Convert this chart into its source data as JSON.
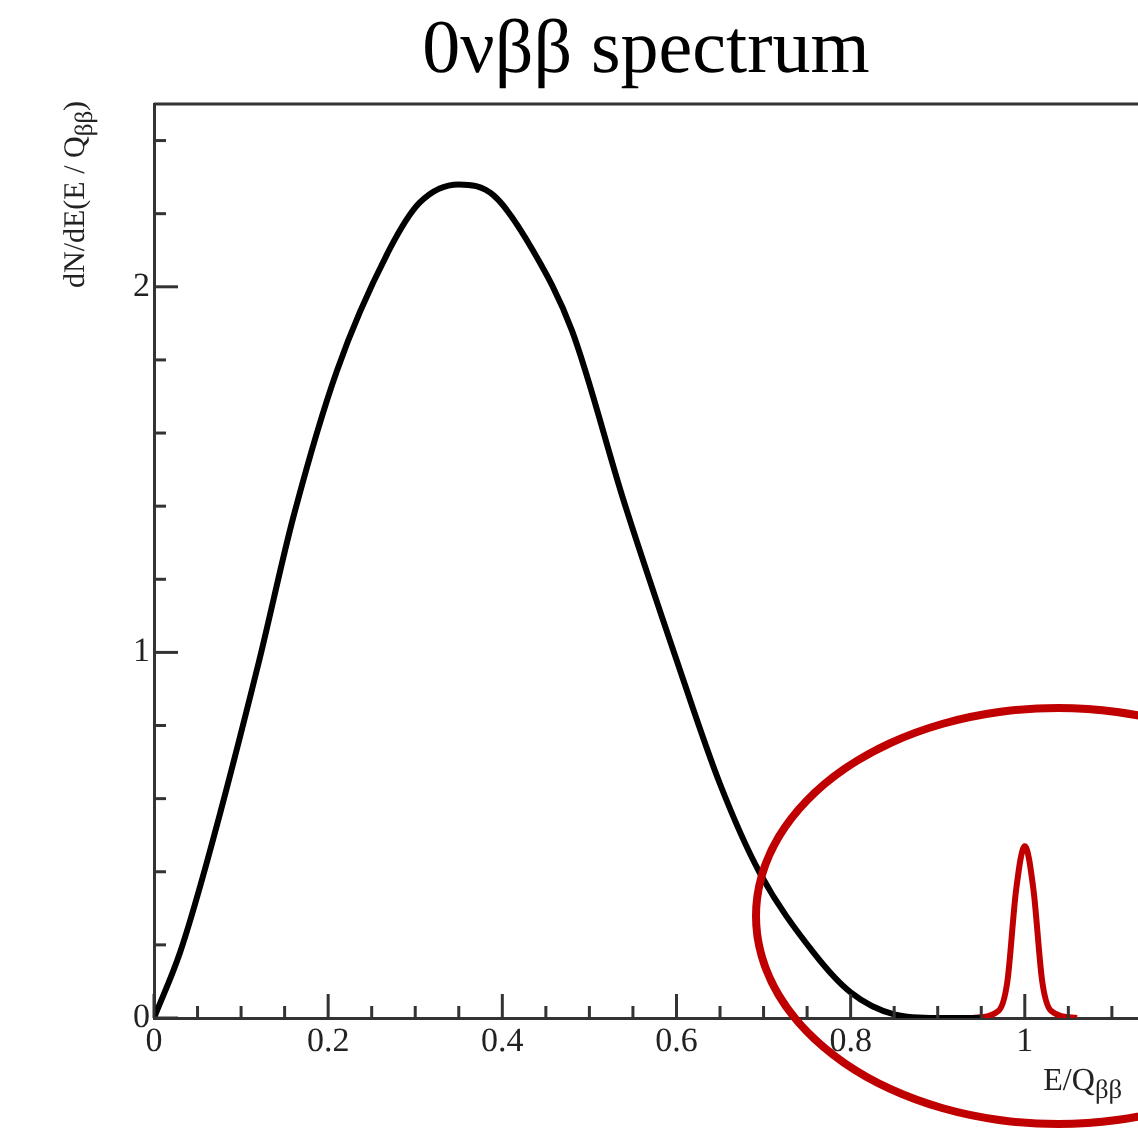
{
  "chart_data": {
    "type": "line",
    "title": "0νββ spectrum",
    "xlabel": "E/Q$_{ββ}$",
    "ylabel": "dN/dE(E / Q$_{ββ}$)",
    "series": [
      {
        "color": "#000000",
        "x": [
          0,
          0.03,
          0.06,
          0.12,
          0.16,
          0.21,
          0.27,
          0.305,
          0.35,
          0.39,
          0.435,
          0.48,
          0.54,
          0.6,
          0.65,
          0.695,
          0.757,
          0.8,
          0.85,
          0.9,
          0.95
        ],
        "values": [
          0,
          0.18,
          0.42,
          0.97,
          1.37,
          1.77,
          2.1,
          2.23,
          2.28,
          2.25,
          2.1,
          1.88,
          1.41,
          0.98,
          0.64,
          0.4,
          0.18,
          0.07,
          0.01,
          0,
          0
        ]
      },
      {
        "color": "#c00000",
        "x": [
          0.94,
          0.97,
          0.98,
          0.99,
          1.0,
          1.01,
          1.02,
          1.03,
          1.06
        ],
        "values": [
          0,
          0.02,
          0.1,
          0.35,
          0.47,
          0.35,
          0.1,
          0.02,
          0
        ]
      }
    ],
    "xlim": [
      0,
      1.13
    ],
    "ylim": [
      0,
      2.5
    ],
    "xticks": [
      0,
      {
        "value": 0.05,
        "label": null
      },
      {
        "value": 0.1,
        "label": null
      },
      {
        "value": 0.15,
        "label": null
      },
      0.2,
      {
        "value": 0.25,
        "label": null
      },
      {
        "value": 0.3,
        "label": null
      },
      {
        "value": 0.35,
        "label": null
      },
      0.4,
      {
        "value": 0.45,
        "label": null
      },
      {
        "value": 0.5,
        "label": null
      },
      {
        "value": 0.55,
        "label": null
      },
      0.6,
      {
        "value": 0.65,
        "label": null
      },
      {
        "value": 0.7,
        "label": null
      },
      {
        "value": 0.75,
        "label": null
      },
      0.8,
      {
        "value": 0.85,
        "label": null
      },
      {
        "value": 0.9,
        "label": null
      },
      {
        "value": 0.95,
        "label": null
      },
      1,
      {
        "value": 1.05,
        "label": null
      },
      {
        "value": 1.1,
        "label": null
      }
    ],
    "yticks": [
      0,
      {
        "value": 0.2,
        "label": null
      },
      {
        "value": 0.4,
        "label": null
      },
      {
        "value": 0.6,
        "label": null
      },
      {
        "value": 0.8,
        "label": null
      },
      1,
      {
        "value": 1.2,
        "label": null
      },
      {
        "value": 1.4,
        "label": null
      },
      {
        "value": 1.6,
        "label": null
      },
      {
        "value": 1.8,
        "label": null
      },
      2,
      {
        "value": 2.2,
        "label": null
      },
      {
        "value": 2.4,
        "label": null
      }
    ],
    "grid": false,
    "legend": false,
    "marker": "none",
    "line_style": "solid"
  }
}
